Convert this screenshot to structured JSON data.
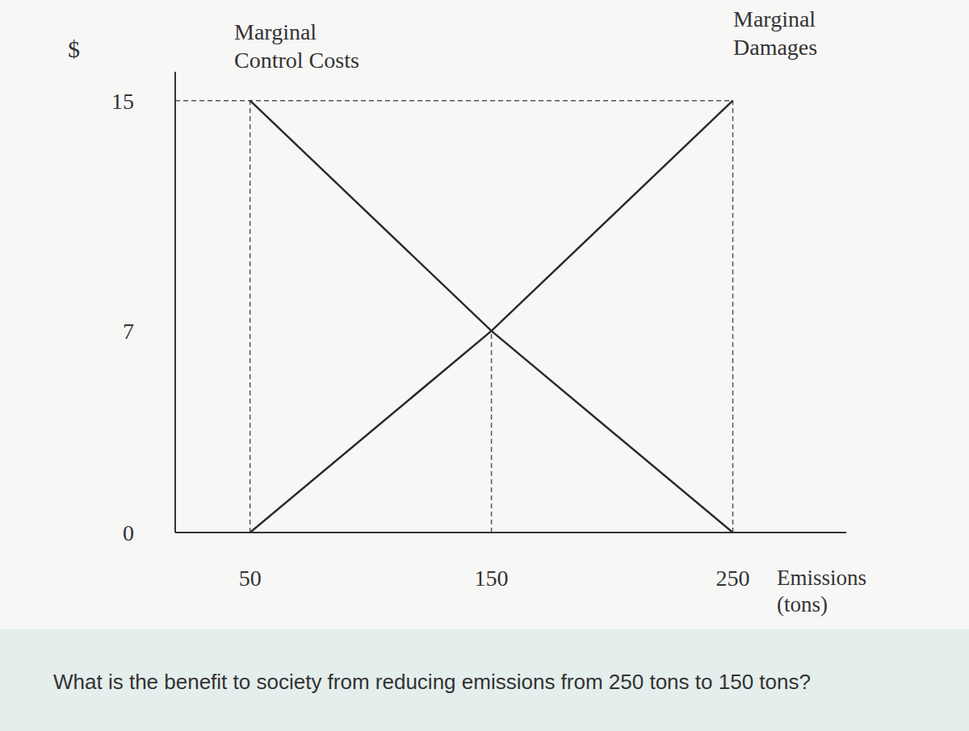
{
  "chart_data": {
    "type": "line",
    "y_label": "$",
    "x_label": "Emissions (tons)",
    "x": [
      50,
      150,
      250
    ],
    "series": [
      {
        "name": "Marginal Control Costs",
        "color": "#2b2b2b",
        "values": [
          15,
          7,
          0
        ]
      },
      {
        "name": "Marginal Damages",
        "color": "#2b2b2b",
        "values": [
          0,
          7,
          15
        ]
      }
    ],
    "xlim": [
      19,
      297
    ],
    "ylim": [
      0,
      16
    ],
    "xticks": [
      50,
      150,
      250
    ],
    "yticks": [
      0,
      7,
      15
    ],
    "grid": false,
    "line_style": "solid"
  },
  "question": "What is the benefit to society from reducing emissions from 250 tons to 150 tons?"
}
